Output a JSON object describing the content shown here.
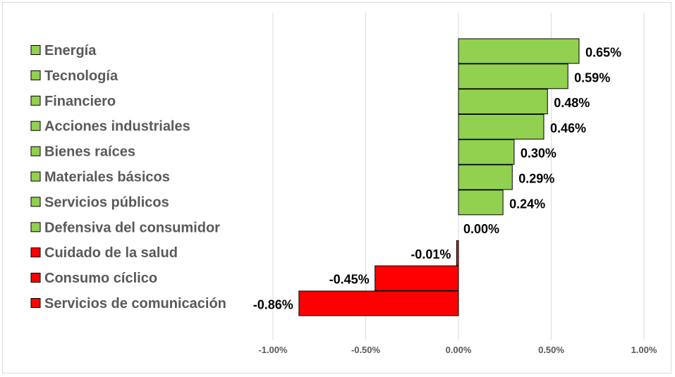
{
  "chart_data": {
    "type": "bar",
    "orientation": "horizontal",
    "categories": [
      "Energía",
      "Tecnología",
      "Financiero",
      "Acciones industriales",
      "Bienes raíces",
      "Materiales básicos",
      "Servicios públicos",
      "Defensiva del consumidor",
      "Cuidado de la salud",
      "Consumo cíclico",
      "Servicios de comunicación"
    ],
    "values": [
      0.65,
      0.59,
      0.48,
      0.46,
      0.3,
      0.29,
      0.24,
      0.0,
      -0.01,
      -0.45,
      -0.86
    ],
    "value_labels": [
      "0.65%",
      "0.59%",
      "0.48%",
      "0.46%",
      "0.30%",
      "0.29%",
      "0.24%",
      "0.00%",
      "-0.01%",
      "-0.45%",
      "-0.86%"
    ],
    "xlim": [
      -1.0,
      1.0
    ],
    "x_ticks": [
      -1.0,
      -0.5,
      0.0,
      0.5,
      1.0
    ],
    "x_tick_labels": [
      "-1.00%",
      "-0.50%",
      "0.00%",
      "0.50%",
      "1.00%"
    ],
    "grid": true,
    "legend_position": "left",
    "title": "",
    "xlabel": "",
    "ylabel": "",
    "colors": {
      "positive": "#92d050",
      "negative": "#ff0000",
      "grid": "#d9d9d9",
      "legend_text": "#595959"
    }
  }
}
